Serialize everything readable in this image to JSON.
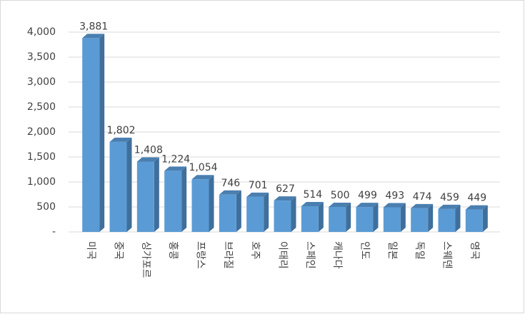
{
  "chart_data": {
    "type": "bar3d",
    "categories": [
      "미국",
      "중국",
      "싱가포르",
      "홍콩",
      "프랑스",
      "브라질",
      "호주",
      "이태리",
      "스페인",
      "캐나다",
      "인도",
      "일본",
      "독일",
      "스웨덴",
      "영국"
    ],
    "values": [
      3881,
      1802,
      1408,
      1224,
      1054,
      746,
      701,
      627,
      514,
      500,
      499,
      493,
      474,
      459,
      449
    ],
    "value_labels": [
      "3,881",
      "1,802",
      "1,408",
      "1,224",
      "1,054",
      "746",
      "701",
      "627",
      "514",
      "500",
      "499",
      "493",
      "474",
      "459",
      "449"
    ],
    "color": "#5b9bd5",
    "ylim": [
      0,
      4000
    ],
    "yticks": [
      {
        "value": 0,
        "label": "-"
      },
      500,
      {
        "value": 1000,
        "label": "1,000"
      },
      {
        "value": 1500,
        "label": "1,500"
      },
      {
        "value": 2000,
        "label": "2,000"
      },
      {
        "value": 2500,
        "label": "2,500"
      },
      {
        "value": 3000,
        "label": "3,000"
      },
      {
        "value": 3500,
        "label": "3,500"
      },
      {
        "value": 4000,
        "label": "4,000"
      }
    ],
    "grid": true
  }
}
